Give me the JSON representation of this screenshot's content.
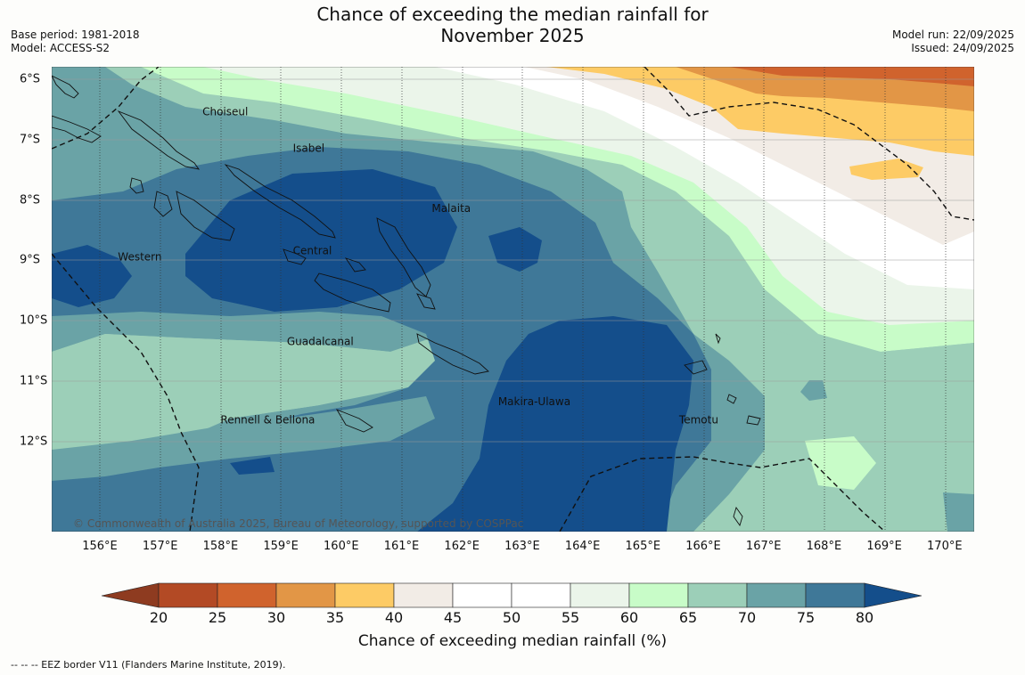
{
  "title_line1": "Chance of exceeding the median rainfall for",
  "title_line2": "November 2025",
  "base_period": "Base period: 1981-2018",
  "model": "Model: ACCESS-S2",
  "model_run": "Model run: 22/09/2025",
  "issued": "Issued: 24/09/2025",
  "copyright": "© Commonwealth of Australia 2025, Bureau of Meteorology, supported by COSPPac",
  "footer": "--  --  -- EEZ border V11 (Flanders Marine Institute, 2019).",
  "colorbar_label": "Chance of exceeding median rainfall (%)",
  "x_ticks": [
    "156°E",
    "157°E",
    "158°E",
    "159°E",
    "160°E",
    "161°E",
    "162°E",
    "163°E",
    "164°E",
    "165°E",
    "166°E",
    "167°E",
    "168°E",
    "169°E",
    "170°E"
  ],
  "y_ticks": [
    "6°S",
    "7°S",
    "8°S",
    "9°S",
    "10°S",
    "11°S",
    "12°S"
  ],
  "colorbar_ticks": [
    "20",
    "25",
    "30",
    "35",
    "40",
    "45",
    "50",
    "55",
    "60",
    "65",
    "70",
    "75",
    "80"
  ],
  "colors": {
    "below_20": "#8e3b20",
    "20_25": "#b34a25",
    "25_30": "#d0632d",
    "30_35": "#e29646",
    "35_40": "#fdcb65",
    "40_45": "#f2ece6",
    "45_50": "#ffffff",
    "50_55": "#ffffff",
    "55_60": "#ebf5ea",
    "60_65": "#c8fcc8",
    "65_70": "#9ccfb8",
    "70_75": "#6aa3a6",
    "75_80": "#3f7898",
    "above_80": "#144e8b",
    "land_outline": "#111111",
    "eez": "#111111"
  },
  "regions": [
    {
      "name": "Choiseul",
      "lon": 157.7,
      "lat": -6.6
    },
    {
      "name": "Isabel",
      "lon": 159.2,
      "lat": -7.2
    },
    {
      "name": "Malaita",
      "lon": 161.5,
      "lat": -8.2
    },
    {
      "name": "Western",
      "lon": 156.3,
      "lat": -9.0
    },
    {
      "name": "Central",
      "lon": 159.2,
      "lat": -8.9
    },
    {
      "name": "Guadalcanal",
      "lon": 159.1,
      "lat": -10.4
    },
    {
      "name": "Makira-Ulawa",
      "lon": 162.6,
      "lat": -11.4
    },
    {
      "name": "Temotu",
      "lon": 165.6,
      "lat": -11.7
    },
    {
      "name": "Rennell & Bellona",
      "lon": 158.0,
      "lat": -11.7
    }
  ]
}
